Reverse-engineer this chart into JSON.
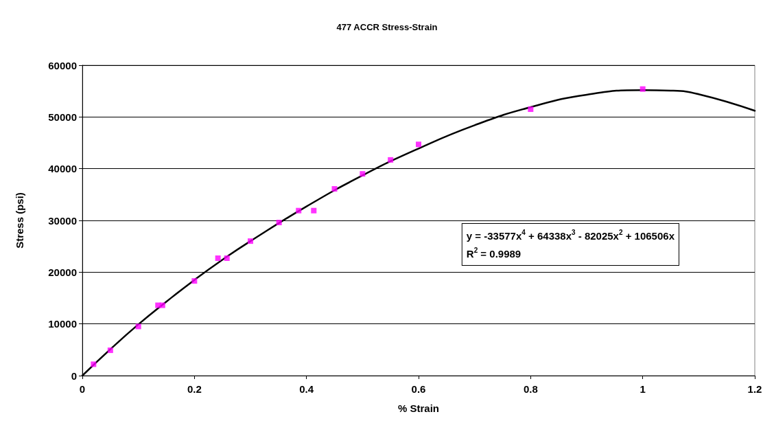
{
  "chart_data": {
    "type": "scatter",
    "title": "477 ACCR Stress-Strain",
    "xlabel": "% Strain",
    "ylabel": "Stress (psi)",
    "x": [
      0.02,
      0.05,
      0.1,
      0.135,
      0.143,
      0.2,
      0.242,
      0.258,
      0.3,
      0.351,
      0.386,
      0.413,
      0.45,
      0.5,
      0.55,
      0.6,
      0.8,
      1.0
    ],
    "series": [
      {
        "color": "#ff00ff",
        "marker": "square",
        "values": [
          2200,
          4900,
          9500,
          13600,
          13600,
          18300,
          22700,
          22700,
          26000,
          29600,
          31900,
          31900,
          36100,
          39000,
          41700,
          44700,
          51500,
          55400
        ]
      },
      {
        "type": "line",
        "color": "#000000",
        "marker": "none",
        "line_style": "solid",
        "x": [
          0,
          0.05,
          0.1,
          0.15,
          0.2,
          0.25,
          0.3,
          0.4,
          0.5,
          0.6,
          0.7,
          0.8,
          0.9,
          1.0,
          1.05,
          1.1,
          1.2
        ],
        "values": [
          0,
          5100,
          9900,
          14300,
          18500,
          22400,
          26000,
          32700,
          38700,
          43900,
          48400,
          51900,
          54300,
          55200,
          55100,
          54400,
          51200
        ]
      }
    ],
    "xlim": [
      0,
      1.2
    ],
    "xticks": [
      0,
      0.2,
      0.4,
      0.6,
      0.8,
      1,
      1.2
    ],
    "ylim": [
      0,
      60000
    ],
    "yticks": [
      0,
      10000,
      20000,
      30000,
      40000,
      50000,
      60000
    ],
    "grid": "y",
    "annotations": [
      "y = -33577x$^{4}$ + 64338x$^{3}$ - 82025x$^{2}$ + 106506x",
      "R$^{2}$ = 0.9989"
    ]
  }
}
